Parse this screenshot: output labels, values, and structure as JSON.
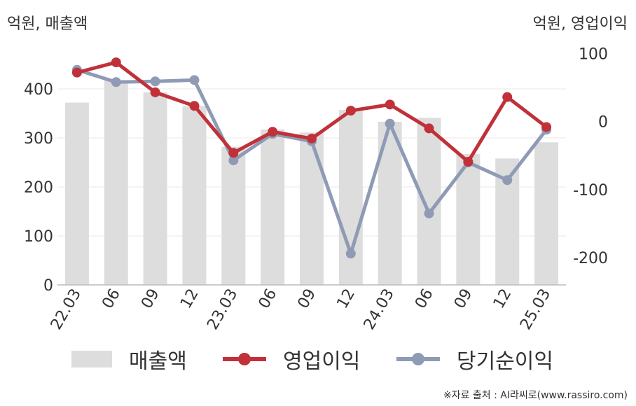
{
  "header": {
    "left_unit": "억원, 매출액",
    "right_unit": "억원, 영업이익"
  },
  "legend": {
    "revenue": "매출액",
    "operating_profit": "영업이익",
    "net_income": "당기순이익"
  },
  "source": "※자료 출처 : AI라씨로(www.rassiro.com)",
  "colors": {
    "revenue": "#dddddd",
    "operating_profit": "#c0313a",
    "net_income": "#8f9bb5",
    "axis": "#bbbbbb",
    "grid": "#e8e8e8"
  },
  "chart_data": {
    "type": "bar",
    "categories": [
      "22.03",
      "06",
      "09",
      "12",
      "23.03",
      "06",
      "09",
      "12",
      "24.03",
      "06",
      "09",
      "12",
      "25.03"
    ],
    "left_axis": {
      "ylim": [
        0,
        500
      ],
      "ticks": [
        0,
        100,
        200,
        300,
        400
      ]
    },
    "right_axis": {
      "ylim": [
        -240,
        120
      ],
      "ticks": [
        -200,
        -100,
        0,
        100
      ]
    },
    "series": [
      {
        "name": "매출액",
        "type": "bar",
        "axis": "left",
        "values": [
          372,
          418,
          393,
          365,
          282,
          317,
          311,
          357,
          333,
          341,
          267,
          258,
          291
        ]
      },
      {
        "name": "영업이익",
        "type": "line",
        "axis": "right",
        "values": [
          72,
          87,
          43,
          23,
          -46,
          -15,
          -25,
          16,
          25,
          -10,
          -59,
          36,
          -8
        ]
      },
      {
        "name": "당기순이익",
        "type": "line",
        "axis": "right",
        "values": [
          76,
          58,
          59,
          61,
          -57,
          -18,
          -29,
          -194,
          -3,
          -135,
          -60,
          -86,
          -12
        ]
      }
    ]
  }
}
